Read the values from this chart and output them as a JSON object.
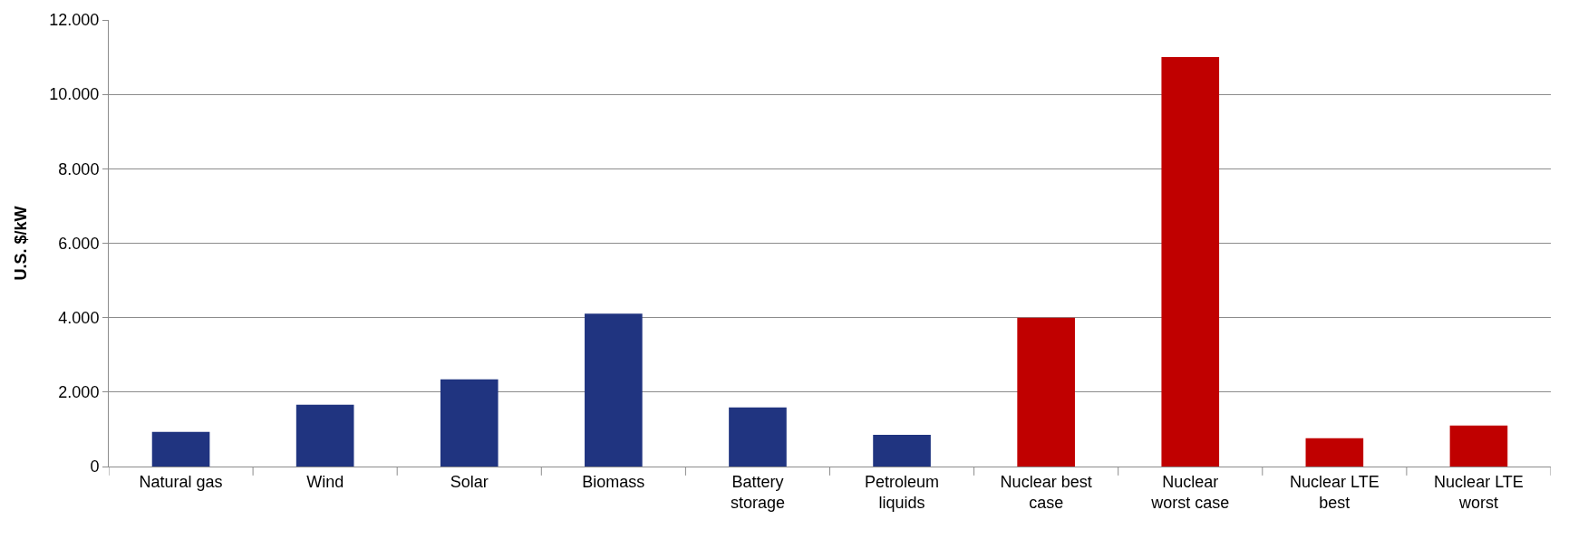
{
  "chart_data": {
    "type": "bar",
    "ylabel": "U.S. $/kW",
    "categories": [
      "Natural gas",
      "Wind",
      "Solar",
      "Biomass",
      "Battery storage",
      "Petroleum liquids",
      "Nuclear best case",
      "Nuclear worst case",
      "Nuclear LTE best",
      "Nuclear LTE worst"
    ],
    "values": [
      930,
      1660,
      2340,
      4110,
      1590,
      850,
      4000,
      11000,
      760,
      1100
    ],
    "colors": [
      "#203480",
      "#203480",
      "#203480",
      "#203480",
      "#203480",
      "#203480",
      "#c00000",
      "#c00000",
      "#c00000",
      "#c00000"
    ],
    "ylim": [
      0,
      12000
    ],
    "yticks": [
      {
        "value": 0,
        "label": "0"
      },
      {
        "value": 2000,
        "label": "2.000"
      },
      {
        "value": 4000,
        "label": "4.000"
      },
      {
        "value": 6000,
        "label": "6.000"
      },
      {
        "value": 8000,
        "label": "8.000"
      },
      {
        "value": 10000,
        "label": "10.000"
      },
      {
        "value": 12000,
        "label": "12.000"
      }
    ],
    "grid": "y"
  }
}
